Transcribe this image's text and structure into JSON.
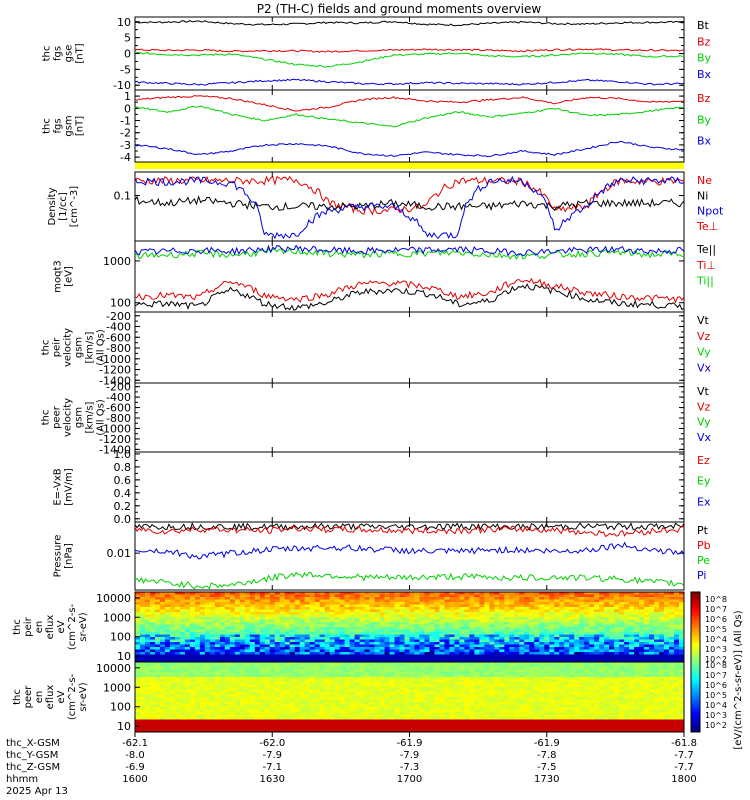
{
  "title": "P2 (TH-C) fields and ground moments overview",
  "colors": {
    "black": "#000000",
    "red": "#e00000",
    "green": "#00d000",
    "blue": "#0000e0",
    "yellow": "#ffff00"
  },
  "panels": [
    {
      "id": "fgs",
      "ylabel": [
        "thc",
        "fgs",
        "gse",
        "[nT]"
      ],
      "ticks": [
        {
          "v": 10,
          "t": "10"
        },
        {
          "v": 5,
          "t": "5"
        },
        {
          "v": 0,
          "t": "0"
        },
        {
          "v": -5,
          "t": "-5"
        },
        {
          "v": -10,
          "t": "-10"
        }
      ],
      "ylim": [
        -11.5,
        11.5
      ],
      "series": [
        {
          "name": "Bt",
          "color": "black",
          "values": [
            9.8,
            9.9,
            10.2,
            9.4,
            9.1,
            9.3,
            9.8,
            9.6,
            10.1,
            9.2,
            9.0,
            9.5,
            9.9,
            9.4,
            9.3,
            9.7,
            9.8,
            9.9
          ]
        },
        {
          "name": "Bz",
          "color": "red",
          "values": [
            1.2,
            1.0,
            1.1,
            0.7,
            0.9,
            0.8,
            0.6,
            0.9,
            1.1,
            1.3,
            1.2,
            1.0,
            0.8,
            1.2,
            1.4,
            1.1,
            1.0,
            0.9
          ]
        },
        {
          "name": "By",
          "color": "green",
          "values": [
            0.2,
            -0.3,
            -0.5,
            -0.2,
            -1.8,
            -3.5,
            -4.1,
            -2.6,
            -0.5,
            -0.2,
            0.1,
            -0.8,
            -1.0,
            -0.5,
            0.2,
            -0.3,
            -1.0,
            -0.8
          ]
        },
        {
          "name": "Bx",
          "color": "blue",
          "values": [
            -9.0,
            -9.4,
            -9.8,
            -9.2,
            -8.6,
            -8.3,
            -8.9,
            -9.5,
            -9.6,
            -9.2,
            -9.4,
            -9.5,
            -9.7,
            -9.1,
            -8.4,
            -8.9,
            -9.7,
            -9.5
          ]
        }
      ]
    },
    {
      "id": "fgm",
      "ylabel": [
        "thc",
        "fgs",
        "gsm",
        "[nT]"
      ],
      "ticks": [
        {
          "v": 1,
          "t": "1"
        },
        {
          "v": 0,
          "t": "0"
        },
        {
          "v": -1,
          "t": "-1"
        },
        {
          "v": -2,
          "t": "-2"
        },
        {
          "v": -3,
          "t": "-3"
        },
        {
          "v": -4,
          "t": "-4"
        }
      ],
      "ylim": [
        -4.4,
        1.5
      ],
      "series": [
        {
          "name": "Bz",
          "color": "red",
          "values": [
            0.7,
            0.9,
            1.0,
            0.8,
            0.3,
            -0.2,
            0.1,
            0.7,
            0.9,
            0.6,
            0.5,
            0.7,
            0.9,
            0.4,
            0.9,
            0.8,
            0.5,
            0.6
          ]
        },
        {
          "name": "By",
          "color": "green",
          "values": [
            0.1,
            -0.3,
            0.2,
            -0.5,
            -1.0,
            -0.5,
            -0.9,
            -1.2,
            -1.5,
            -0.8,
            -0.3,
            -0.7,
            -0.4,
            0.0,
            -0.6,
            -0.5,
            -0.2,
            0.1
          ]
        },
        {
          "name": "Bx",
          "color": "blue",
          "values": [
            -3.0,
            -3.3,
            -3.8,
            -3.5,
            -3.0,
            -2.9,
            -3.1,
            -3.7,
            -3.9,
            -3.6,
            -3.8,
            -3.9,
            -3.5,
            -3.8,
            -3.3,
            -2.7,
            -3.2,
            -3.4
          ]
        }
      ]
    },
    {
      "id": "density",
      "ylabel": [
        "Density",
        "[1/cc]",
        "[cm^-3]"
      ],
      "ticks": [
        {
          "v": 0.1,
          "t": "0.1"
        }
      ],
      "log": true,
      "ylim": [
        0.012,
        0.3
      ],
      "series": [
        {
          "name": "Ne",
          "color": "red",
          "values": [
            0.2,
            0.2,
            0.2,
            0.2,
            0.2,
            0.21,
            0.07,
            0.05,
            0.05,
            0.06,
            0.2,
            0.2,
            0.19,
            0.05,
            0.06,
            0.2,
            0.19,
            0.2
          ]
        },
        {
          "name": "Ni",
          "color": "black",
          "values": [
            0.08,
            0.07,
            0.08,
            0.07,
            0.06,
            0.06,
            0.06,
            0.06,
            0.07,
            0.06,
            0.06,
            0.06,
            0.07,
            0.06,
            0.07,
            0.07,
            0.07,
            0.07
          ]
        },
        {
          "name": "Npot",
          "color": "blue",
          "values": [
            0.2,
            0.19,
            0.2,
            0.18,
            0.016,
            0.016,
            0.05,
            0.06,
            0.06,
            0.016,
            0.016,
            0.2,
            0.2,
            0.017,
            0.06,
            0.2,
            0.2,
            0.2
          ]
        },
        {
          "name": "Te⊥",
          "color": "red",
          "values": []
        }
      ]
    },
    {
      "id": "temp",
      "ylabel": [
        "moqt3",
        "[eV]"
      ],
      "ticks": [
        {
          "v": 1000,
          "t": "1000"
        },
        {
          "v": 100,
          "t": "100"
        }
      ],
      "log": true,
      "ylim": [
        60,
        3000
      ],
      "series": [
        {
          "name": "Te||",
          "color": "black",
          "values": [
            90,
            95,
            80,
            200,
            95,
            75,
            100,
            180,
            200,
            170,
            90,
            110,
            260,
            190,
            120,
            95,
            90,
            80
          ]
        },
        {
          "name": "Ti⊥",
          "color": "red",
          "values": [
            140,
            150,
            130,
            320,
            150,
            120,
            160,
            280,
            300,
            240,
            140,
            170,
            360,
            250,
            170,
            140,
            130,
            120
          ]
        },
        {
          "name": "Ti||",
          "color": "green",
          "values": [
            1300,
            1400,
            1500,
            1400,
            1600,
            1700,
            1500,
            1400,
            1500,
            1500,
            1600,
            1400,
            1300,
            1400,
            1500,
            1600,
            1400,
            1500
          ]
        },
        {
          "name": "",
          "color": "blue",
          "values": [
            1600,
            1700,
            1800,
            1700,
            1900,
            2000,
            1800,
            1700,
            1800,
            1800,
            1900,
            1700,
            1600,
            1700,
            1800,
            1900,
            1700,
            1800
          ]
        }
      ]
    },
    {
      "id": "peir",
      "ylabel": [
        "thc",
        "peir",
        "velocity",
        "gsm",
        "[km/s]",
        "(All Qs)"
      ],
      "ticks": [
        {
          "v": -200,
          "t": "-200"
        },
        {
          "v": -400,
          "t": "-400"
        },
        {
          "v": -600,
          "t": "-600"
        },
        {
          "v": -800,
          "t": "-800"
        },
        {
          "v": -1000,
          "t": "-1000"
        },
        {
          "v": -1200,
          "t": "-1200"
        },
        {
          "v": -1400,
          "t": "-1400"
        }
      ],
      "ylim": [
        -1450,
        -130
      ],
      "series": [
        {
          "name": "Vt",
          "color": "black",
          "values": []
        },
        {
          "name": "Vz",
          "color": "red",
          "values": []
        },
        {
          "name": "Vy",
          "color": "green",
          "values": []
        },
        {
          "name": "Vx",
          "color": "blue",
          "values": []
        }
      ]
    },
    {
      "id": "peer",
      "ylabel": [
        "thc",
        "peer",
        "velocity",
        "gsm",
        "[km/s]",
        "(All Qs)"
      ],
      "ticks": [
        {
          "v": -200,
          "t": "-200"
        },
        {
          "v": -400,
          "t": "-400"
        },
        {
          "v": -600,
          "t": "-600"
        },
        {
          "v": -800,
          "t": "-800"
        },
        {
          "v": -1000,
          "t": "-1000"
        },
        {
          "v": -1200,
          "t": "-1200"
        },
        {
          "v": -1400,
          "t": "-1400"
        }
      ],
      "ylim": [
        -1450,
        -130
      ],
      "series": [
        {
          "name": "Vt",
          "color": "black",
          "values": []
        },
        {
          "name": "Vz",
          "color": "red",
          "values": []
        },
        {
          "name": "Vy",
          "color": "green",
          "values": []
        },
        {
          "name": "Vx",
          "color": "blue",
          "values": []
        }
      ]
    },
    {
      "id": "efield",
      "ylabel": [
        "E=-VxB",
        "[mV/m]"
      ],
      "ticks": [
        {
          "v": 1.0,
          "t": "1.0"
        },
        {
          "v": 0.8,
          "t": "0.8"
        },
        {
          "v": 0.6,
          "t": "0.6"
        },
        {
          "v": 0.4,
          "t": "0.4"
        },
        {
          "v": 0.2,
          "t": "0.2"
        },
        {
          "v": 0.0,
          "t": "0.0"
        }
      ],
      "ylim": [
        -0.05,
        1.03
      ],
      "series": [
        {
          "name": "Ez",
          "color": "red",
          "values": []
        },
        {
          "name": "Ey",
          "color": "green",
          "values": []
        },
        {
          "name": "Ex",
          "color": "blue",
          "values": []
        }
      ]
    },
    {
      "id": "pressure",
      "ylabel": [
        "Pressure",
        "[nPa]"
      ],
      "ticks": [
        {
          "v": 0.01,
          "t": "0.01"
        }
      ],
      "log": true,
      "ylim": [
        0.0012,
        0.06
      ],
      "series": [
        {
          "name": "Pt",
          "color": "black",
          "values": [
            0.045,
            0.046,
            0.047,
            0.046,
            0.045,
            0.046,
            0.047,
            0.046,
            0.045,
            0.046,
            0.047,
            0.046,
            0.045,
            0.046,
            0.047,
            0.046,
            0.046,
            0.047
          ]
        },
        {
          "name": "Pb",
          "color": "red",
          "values": [
            0.04,
            0.035,
            0.04,
            0.038,
            0.036,
            0.042,
            0.039,
            0.038,
            0.037,
            0.036,
            0.037,
            0.039,
            0.04,
            0.038,
            0.033,
            0.03,
            0.036,
            0.04
          ]
        },
        {
          "name": "Pe",
          "color": "green",
          "values": [
            0.0022,
            0.0018,
            0.0015,
            0.0016,
            0.0022,
            0.003,
            0.0028,
            0.0025,
            0.0024,
            0.0025,
            0.0026,
            0.0025,
            0.0024,
            0.0025,
            0.0024,
            0.0023,
            0.0019,
            0.0017
          ]
        },
        {
          "name": "Pi",
          "color": "blue",
          "values": [
            0.012,
            0.011,
            0.008,
            0.01,
            0.012,
            0.013,
            0.014,
            0.013,
            0.012,
            0.011,
            0.011,
            0.012,
            0.012,
            0.011,
            0.012,
            0.016,
            0.012,
            0.01
          ]
        }
      ]
    }
  ],
  "spectrograms": [
    {
      "id": "peir-spec",
      "ylabel": [
        "thc",
        "peir",
        "en",
        "eflux",
        "eV",
        "(cm^2-s-",
        "sr-eV)"
      ],
      "ticks": [
        {
          "v": 10000,
          "t": "10000"
        },
        {
          "v": 1000,
          "t": "1000"
        },
        {
          "v": 100,
          "t": "100"
        },
        {
          "v": 10,
          "t": "10"
        }
      ]
    },
    {
      "id": "peer-spec",
      "ylabel": [
        "thc",
        "peer",
        "en",
        "eflux",
        "eV",
        "(cm^2-s-",
        "sr-eV)"
      ],
      "ticks": [
        {
          "v": 10000,
          "t": "10000"
        },
        {
          "v": 1000,
          "t": "1000"
        },
        {
          "v": 100,
          "t": "100"
        },
        {
          "v": 10,
          "t": "10"
        }
      ]
    }
  ],
  "colorbar": {
    "top_labels": [
      "10^8",
      "10^7",
      "10^6",
      "10^5",
      "10^4",
      "10^3",
      "10^2"
    ],
    "bottom_labels": [
      "10^8",
      "10^7",
      "10^6",
      "10^5",
      "10^4",
      "10^3",
      "10^2"
    ],
    "label": "[eV/(cm^2-s-sr-eV)] (All Qs)"
  },
  "xaxis": {
    "row_labels": [
      "thc_X-GSM",
      "thc_Y-GSM",
      "thc_Z-GSM",
      "hhmm",
      "2025 Apr 13"
    ],
    "columns": [
      {
        "x": "-62.1",
        "y": "-8.0",
        "z": "-6.9",
        "t": "1600"
      },
      {
        "x": "-62.0",
        "y": "-7.9",
        "z": "-7.1",
        "t": "1630"
      },
      {
        "x": "-61.9",
        "y": "-7.9",
        "z": "-7.3",
        "t": "1700"
      },
      {
        "x": "-61.9",
        "y": "-7.8",
        "z": "-7.5",
        "t": "1730"
      },
      {
        "x": "-61.8",
        "y": "-7.7",
        "z": "-7.7",
        "t": "1800"
      }
    ]
  },
  "chart_data": {
    "type": "line",
    "title": "P2 (TH-C) fields and ground moments overview",
    "x": [
      "1600",
      "1630",
      "1700",
      "1730",
      "1800"
    ],
    "note_series": "per-panel series listed in panels[]"
  }
}
